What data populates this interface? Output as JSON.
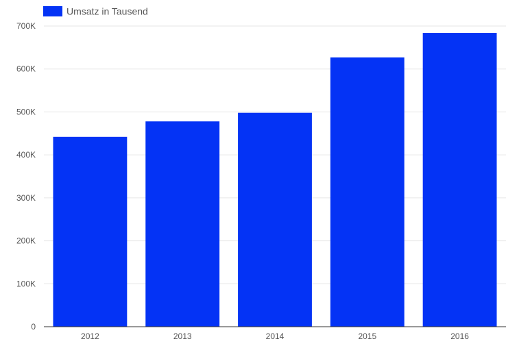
{
  "chart_data": {
    "type": "bar",
    "categories": [
      "2012",
      "2013",
      "2014",
      "2015",
      "2016"
    ],
    "series": [
      {
        "name": "Umsatz in Tausend",
        "values": [
          442000,
          478000,
          498000,
          627000,
          684000
        ],
        "color": "#0433f5"
      }
    ],
    "y_ticks": [
      {
        "value": 0,
        "label": "0"
      },
      {
        "value": 100000,
        "label": "100K"
      },
      {
        "value": 200000,
        "label": "200K"
      },
      {
        "value": 300000,
        "label": "300K"
      },
      {
        "value": 400000,
        "label": "400K"
      },
      {
        "value": 500000,
        "label": "500K"
      },
      {
        "value": 600000,
        "label": "600K"
      },
      {
        "value": 700000,
        "label": "700K"
      }
    ],
    "ylim": [
      0,
      700000
    ],
    "grid": true,
    "legend_position": "top-left",
    "gridline_color": "#e6e6e6",
    "axis_color": "#333333"
  }
}
